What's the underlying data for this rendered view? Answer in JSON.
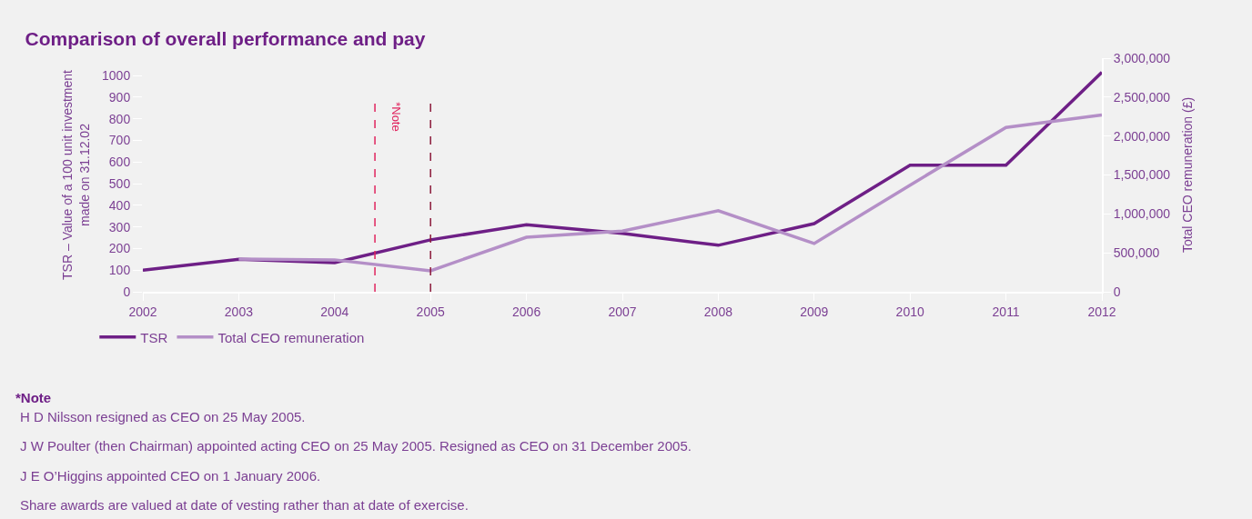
{
  "chart_data": {
    "type": "line",
    "title": "Comparison of overall performance and pay",
    "ylabel": "TSR – Value of a 100 unit investment\nmade on 31.12.02",
    "y2label": "Total CEO remuneration (£)",
    "x": [
      2002,
      2003,
      2004,
      2005,
      2006,
      2007,
      2008,
      2009,
      2010,
      2011,
      2012
    ],
    "series": [
      {
        "name": "TSR",
        "color": "#6e1f86",
        "values": [
          100,
          150,
          135,
          240,
          310,
          270,
          215,
          315,
          585,
          585,
          1015
        ]
      },
      {
        "name": "Total CEO remuneration",
        "color": "#b48fc7",
        "axis": "y2",
        "values": [
          null,
          420000,
          410000,
          270000,
          700000,
          780000,
          1040000,
          620000,
          1370000,
          2110000,
          2270000
        ]
      }
    ],
    "xlim": [
      2002,
      2012
    ],
    "xticks": [
      2002,
      2003,
      2004,
      2005,
      2006,
      2007,
      2008,
      2009,
      2010,
      2011,
      2012
    ],
    "ylim": [
      0,
      1080
    ],
    "yticks": [
      0,
      100,
      200,
      300,
      400,
      500,
      600,
      700,
      800,
      900,
      1000
    ],
    "y2lim": [
      0,
      3000000
    ],
    "y2ticks": [
      {
        "value": 0,
        "label": "0"
      },
      {
        "value": 500000,
        "label": "500,000"
      },
      {
        "value": 1000000,
        "label": "1,000,000"
      },
      {
        "value": 1500000,
        "label": "1,500,000"
      },
      {
        "value": 2000000,
        "label": "2,000,000"
      },
      {
        "value": 2500000,
        "label": "2,500,000"
      },
      {
        "value": 3000000,
        "label": "3,000,000"
      }
    ],
    "ref_lines": [
      {
        "axis": "x",
        "value": 2004.42,
        "color": "#e0245e",
        "line_style": "dashed",
        "label": "*Note"
      },
      {
        "axis": "x",
        "value": 2005,
        "color": "#8b1a3a",
        "line_style": "dashed"
      }
    ],
    "annotations": [
      "*Note",
      "H D Nilsson resigned as CEO on 25 May 2005.",
      "J W Poulter (then Chairman) appointed acting CEO on 25 May 2005. Resigned as CEO on 31 December 2005.",
      "J E O’Higgins appointed CEO on 1 January 2006.",
      "Share awards are valued at date of vesting rather than at date of exercise."
    ],
    "grid": false,
    "legend": "bottom left",
    "marker": "none",
    "line_style": "solid"
  }
}
